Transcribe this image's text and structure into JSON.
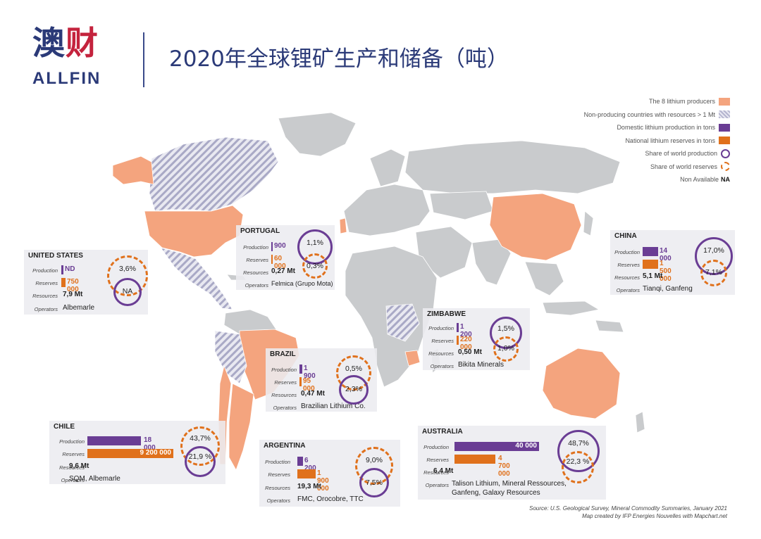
{
  "header": {
    "logo_cn_1": "澳",
    "logo_cn_2": "财",
    "logo_en": "ALLFIN",
    "title": "2020年全球锂矿生产和储备（吨）"
  },
  "legend": {
    "items": [
      {
        "label": "The 8 lithium producers",
        "swatch": "salmon"
      },
      {
        "label": "Non-producing countries with resources > 1 Mt",
        "swatch": "hatch"
      },
      {
        "label": "Domestic lithium production in tons",
        "swatch": "purple"
      },
      {
        "label": "National lithium reserves in tons",
        "swatch": "orange"
      },
      {
        "label": "Share of world production",
        "swatch": "circle"
      },
      {
        "label": "Share of world reserves",
        "swatch": "dash"
      }
    ],
    "na_label": "Non Available",
    "na_code": "NA"
  },
  "labels": {
    "production": "Production",
    "reserves": "Reserves",
    "resources": "Resources",
    "operators": "Operators"
  },
  "countries": {
    "us": {
      "name": "UNITED STATES",
      "production": "ND",
      "reserves": "750 000",
      "resources": "7,9 Mt",
      "operators": "Albemarle",
      "share_production": "NA",
      "share_reserves": "3,6%"
    },
    "portugal": {
      "name": "PORTUGAL",
      "production": "900",
      "reserves": "60 000",
      "resources": "0,27 Mt",
      "operators": "Felmica (Grupo Mota)",
      "share_production": "1,1%",
      "share_reserves": "0,3%"
    },
    "china": {
      "name": "CHINA",
      "production": "14 000",
      "reserves": "1 500 000",
      "resources": "5,1 Mt",
      "operators": "Tianqi, Ganfeng",
      "share_production": "17,0%",
      "share_reserves": "7,1%"
    },
    "zimbabwe": {
      "name": "ZIMBABWE",
      "production": "1 200",
      "reserves": "220 000",
      "resources": "0,50 Mt",
      "operators": "Bikita Minerals",
      "share_production": "1,5%",
      "share_reserves": "1,0%"
    },
    "brazil": {
      "name": "BRAZIL",
      "production": "1 900",
      "reserves": "95 000",
      "resources": "0,47 Mt",
      "operators": "Brazilian Lithium Co.",
      "share_production": "2,3%",
      "share_reserves": "0,5%"
    },
    "chile": {
      "name": "CHILE",
      "production": "18 000",
      "reserves": "9 200 000",
      "resources": "9,6 Mt",
      "operators": "SQM, Albemarle",
      "share_production": "21,9 %",
      "share_reserves": "43,7%"
    },
    "argentina": {
      "name": "ARGENTINA",
      "production": "6 200",
      "reserves": "1 900 000",
      "resources": "19,3 Mt",
      "operators": "FMC, Orocobre, TTC",
      "share_production": "7,5%",
      "share_reserves": "9,0%"
    },
    "australia": {
      "name": "AUSTRALIA",
      "production": "40 000",
      "reserves": "4 700 000",
      "resources": "6,4 Mt",
      "operators_line1": "Talison Lithium, Mineral Ressources,",
      "operators_line2": "Ganfeng, Galaxy Resources",
      "share_production": "48,7%",
      "share_reserves": "22,3 %"
    }
  },
  "source": {
    "line1": "Source: U.S. Geological Survey,  Mineral Commodity Summaries, January 2021",
    "line2": "Map created by IFP Energies Nouvelles with Mapchart.net"
  },
  "colors": {
    "producer": "#f4a47e",
    "land": "#c9cbcd",
    "production": "#6a3d94",
    "reserves": "#e0711c",
    "brand": "#2b3a78"
  }
}
